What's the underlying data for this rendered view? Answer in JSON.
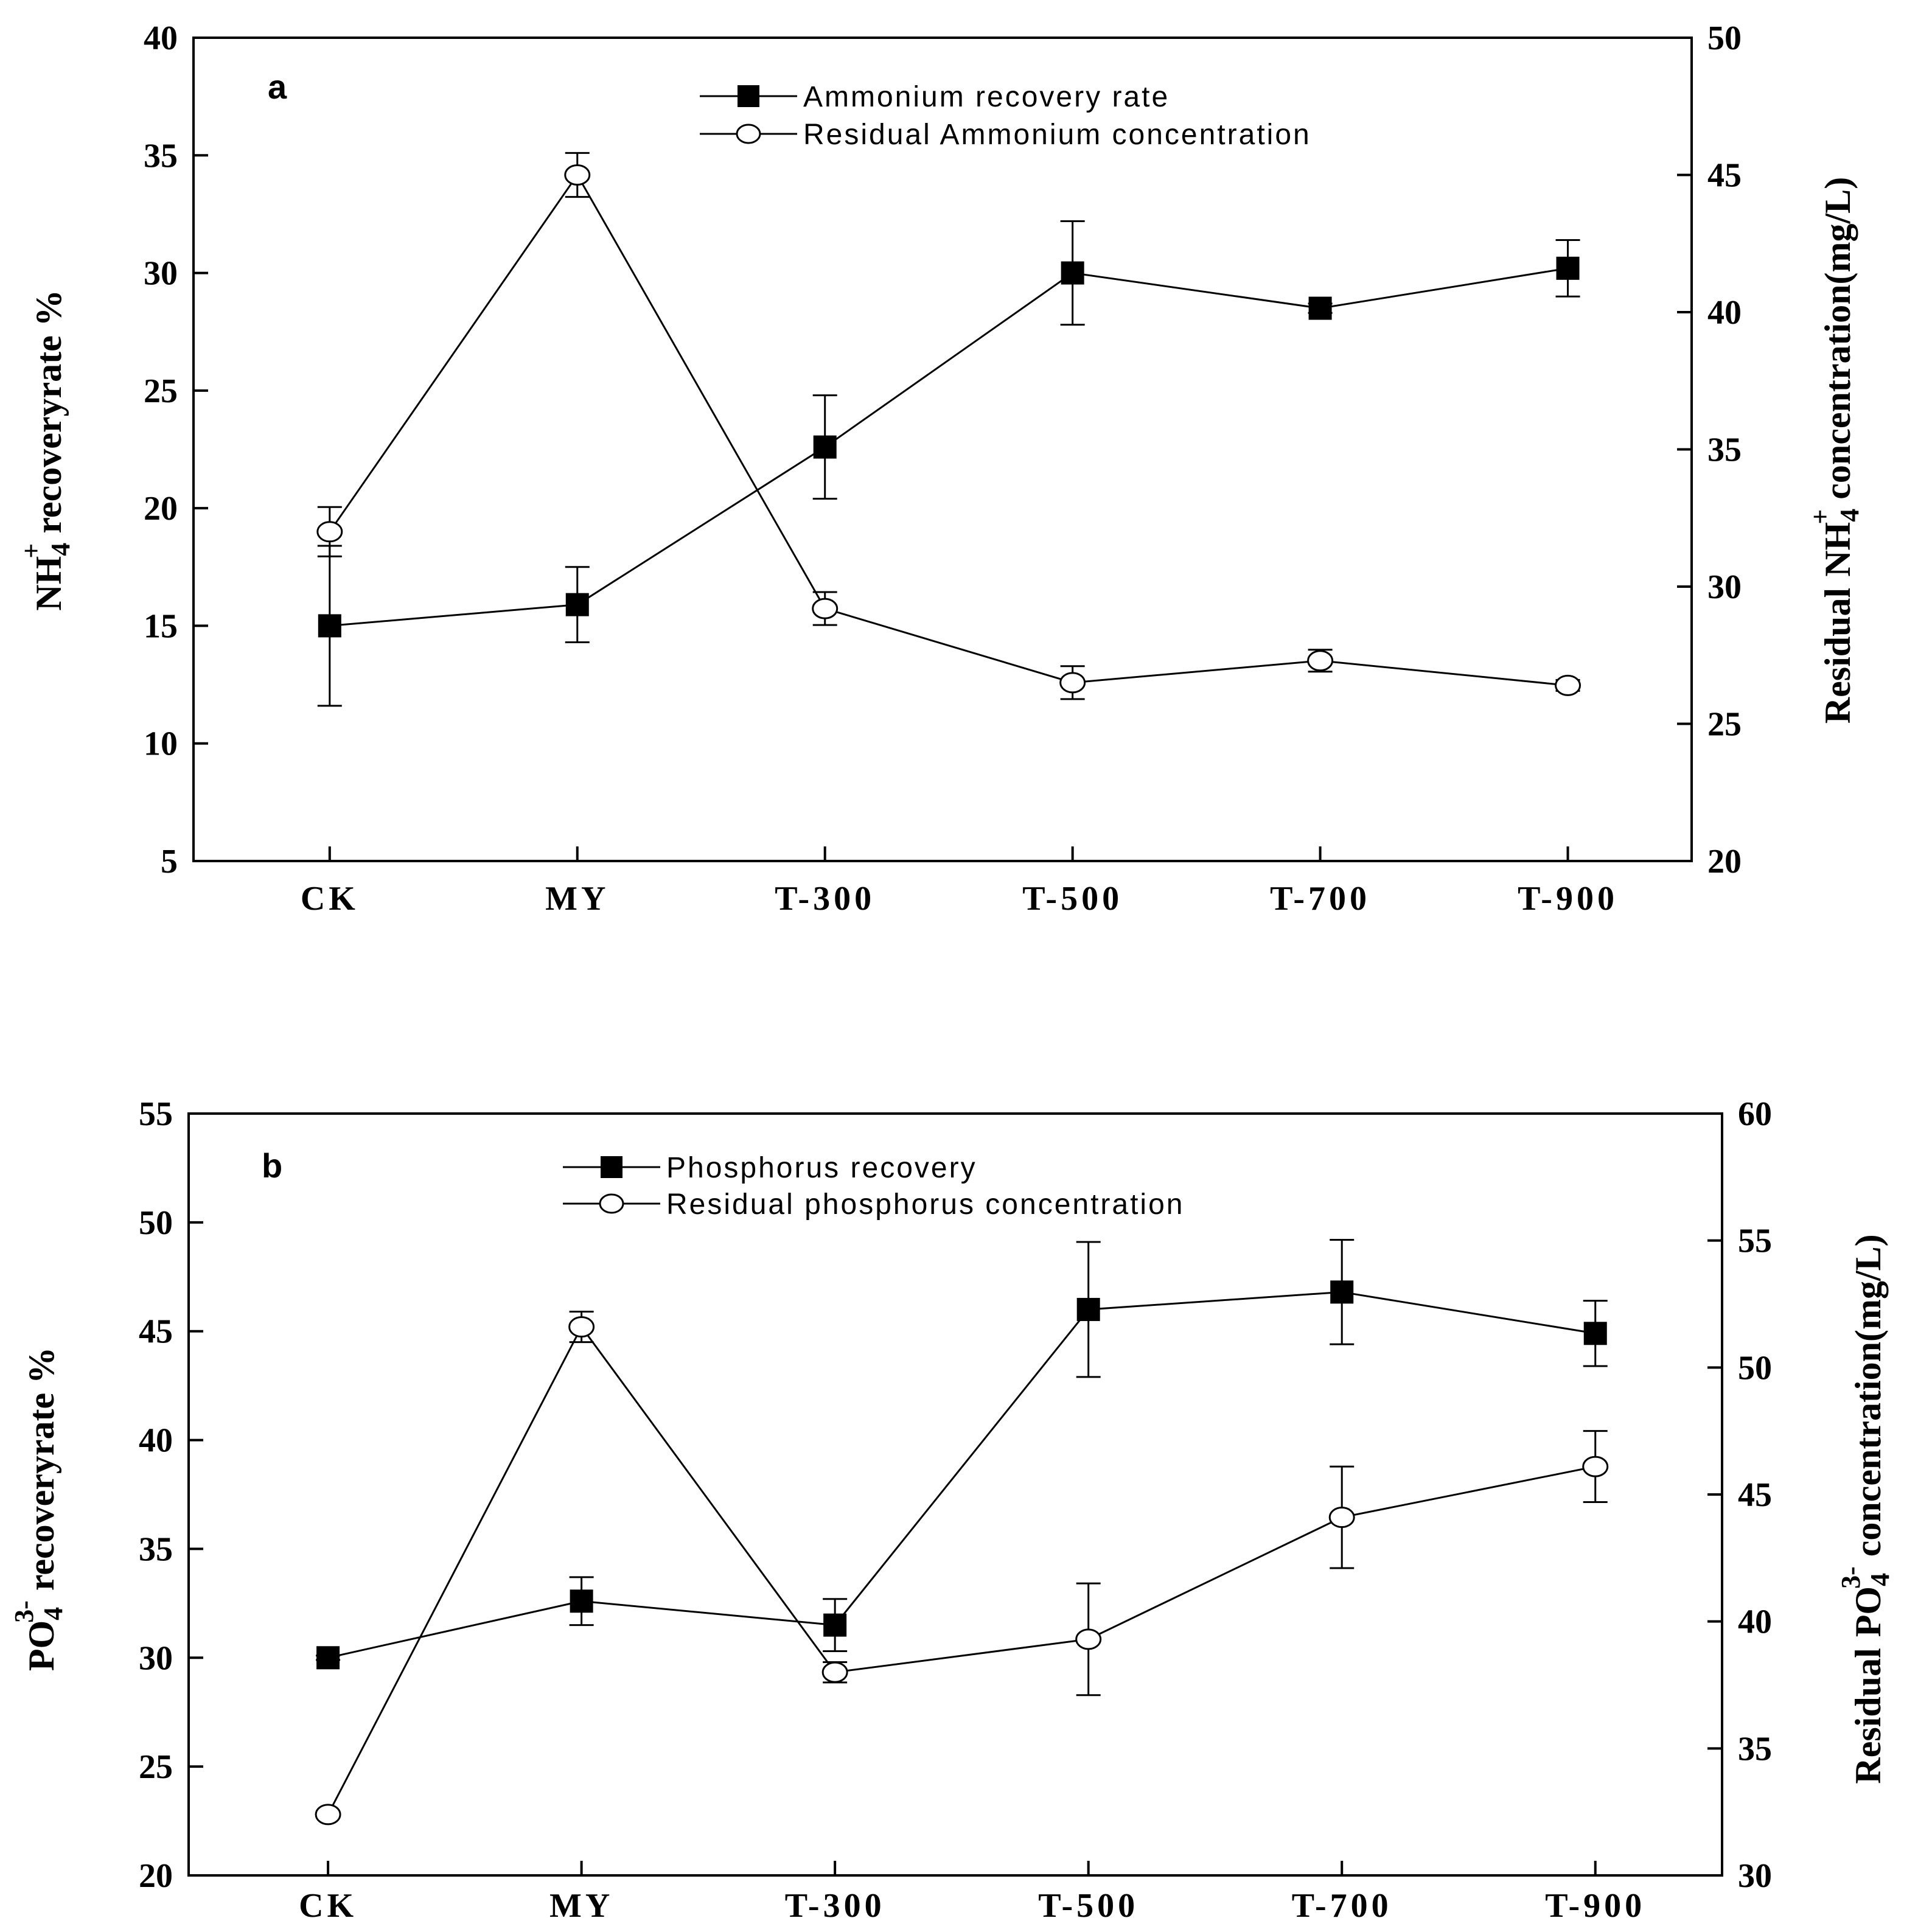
{
  "chart_data": [
    {
      "type": "line",
      "panel_label": "a",
      "categories": [
        "CK",
        "MY",
        "T-300",
        "T-500",
        "T-700",
        "T-900"
      ],
      "left_axis": {
        "label": "recoveryrate %",
        "label_chem": "NH",
        "label_sub": "4",
        "label_sup": "+",
        "ylim": [
          5,
          40
        ],
        "ticks": [
          "5",
          "10",
          "15",
          "20",
          "25",
          "30",
          "35",
          "40"
        ]
      },
      "right_axis": {
        "label_prefix": "Residual",
        "label_chem": "NH",
        "label_sub": "4",
        "label_sup": "+",
        "label": "concentration(mg/L)",
        "ylim": [
          20,
          50
        ],
        "ticks": [
          "20",
          "25",
          "30",
          "35",
          "40",
          "45",
          "50"
        ]
      },
      "series": [
        {
          "name": "Ammonium recovery rate",
          "axis": "left",
          "marker": "filled-square",
          "values": [
            15.0,
            15.9,
            22.6,
            30.0,
            28.5,
            30.2
          ],
          "errors": [
            3.4,
            1.6,
            2.2,
            2.2,
            0.2,
            1.2
          ]
        },
        {
          "name": "Residual Ammonium concentration",
          "axis": "right",
          "marker": "open-circle",
          "values": [
            32.0,
            45.0,
            29.2,
            26.5,
            27.3,
            26.4
          ],
          "errors": [
            0.9,
            0.8,
            0.6,
            0.6,
            0.4,
            0.2
          ]
        }
      ]
    },
    {
      "type": "line",
      "panel_label": "b",
      "categories": [
        "CK",
        "MY",
        "T-300",
        "T-500",
        "T-700",
        "T-900"
      ],
      "left_axis": {
        "label": "recoveryrate %",
        "label_chem": "PO",
        "label_sub": "4",
        "label_sup": "3-",
        "ylim": [
          20,
          55
        ],
        "ticks": [
          "20",
          "25",
          "30",
          "35",
          "40",
          "45",
          "50",
          "55"
        ]
      },
      "right_axis": {
        "label_prefix": "Residual",
        "label_chem": "PO",
        "label_sub": "4",
        "label_sup": "3-",
        "label": "concentration(mg/L)",
        "ylim": [
          30,
          60
        ],
        "ticks": [
          "30",
          "35",
          "40",
          "45",
          "50",
          "55",
          "60"
        ]
      },
      "series": [
        {
          "name": "Phosphorus recovery",
          "axis": "left",
          "marker": "filled-square",
          "values": [
            30.0,
            32.6,
            31.5,
            46.0,
            46.8,
            44.9
          ],
          "errors": [
            0.1,
            1.1,
            1.2,
            3.1,
            2.4,
            1.5
          ]
        },
        {
          "name": "Residual phosphorus concentration",
          "axis": "right",
          "marker": "open-circle",
          "values": [
            32.4,
            51.6,
            38.0,
            39.3,
            44.1,
            46.1
          ],
          "errors": [
            0.1,
            0.6,
            0.4,
            2.2,
            2.0,
            1.4
          ]
        }
      ]
    }
  ]
}
